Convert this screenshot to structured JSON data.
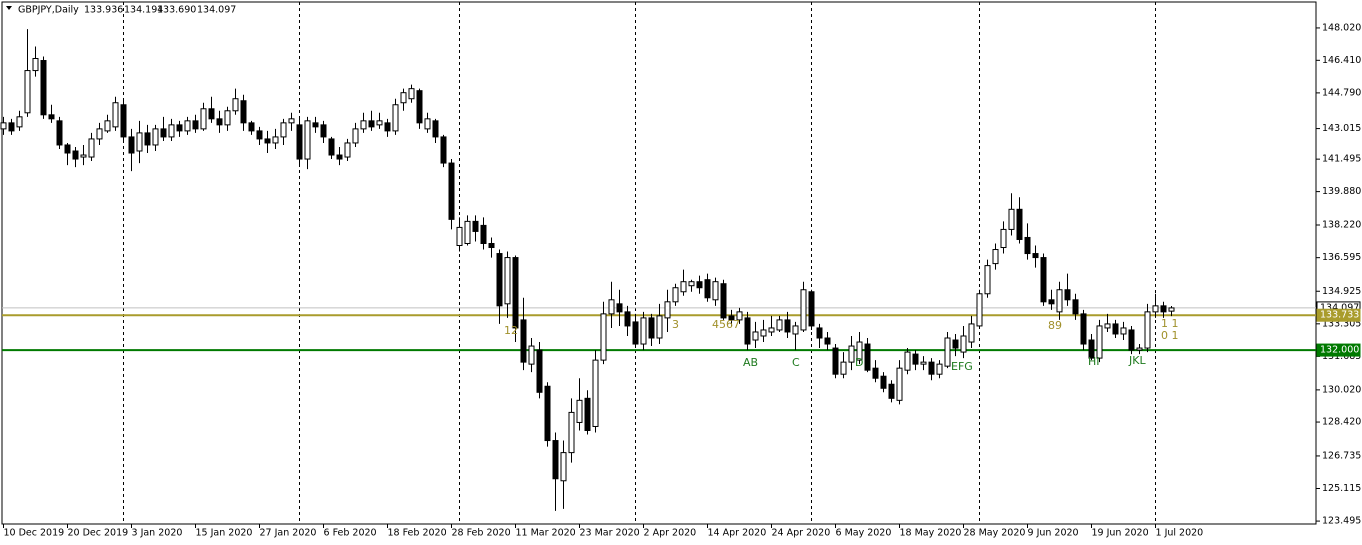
{
  "chart_data": {
    "type": "candlestick",
    "symbol": "GBPJPY,Daily",
    "quote_labels": [
      "133.936",
      "134.194",
      "133.690",
      "134.097"
    ],
    "categories": [
      "10 Dec 2019",
      null,
      null,
      null,
      null,
      null,
      null,
      null,
      "20 Dec 2019",
      null,
      null,
      null,
      null,
      null,
      null,
      null,
      "3 Jan 2020",
      null,
      null,
      null,
      null,
      null,
      null,
      null,
      "15 Jan 2020",
      null,
      null,
      null,
      null,
      null,
      null,
      null,
      "27 Jan 2020",
      null,
      null,
      null,
      null,
      null,
      null,
      null,
      "6 Feb 2020",
      null,
      null,
      null,
      null,
      null,
      null,
      null,
      "18 Feb 2020",
      null,
      null,
      null,
      null,
      null,
      null,
      null,
      "28 Feb 2020",
      null,
      null,
      null,
      null,
      null,
      null,
      null,
      "11 Mar 2020",
      null,
      null,
      null,
      null,
      null,
      null,
      null,
      "23 Mar 2020",
      null,
      null,
      null,
      null,
      null,
      null,
      null,
      "2 Apr 2020",
      null,
      null,
      null,
      null,
      null,
      null,
      null,
      "14 Apr 2020",
      null,
      null,
      null,
      null,
      null,
      null,
      null,
      "24 Apr 2020",
      null,
      null,
      null,
      null,
      null,
      null,
      null,
      "6 May 2020",
      null,
      null,
      null,
      null,
      null,
      null,
      null,
      "18 May 2020",
      null,
      null,
      null,
      null,
      null,
      null,
      null,
      "28 May 2020",
      null,
      null,
      null,
      null,
      null,
      null,
      null,
      "9 Jun 2020",
      null,
      null,
      null,
      null,
      null,
      null,
      null,
      "19 Jun 2020",
      null,
      null,
      null,
      null,
      null,
      null,
      null,
      "1 Jul 2020",
      null,
      null
    ],
    "open": [
      143.0,
      143.3,
      143.1,
      143.8,
      145.9,
      146.4,
      143.7,
      143.4,
      142.2,
      141.9,
      141.6,
      141.6,
      142.5,
      142.9,
      143.1,
      144.2,
      142.6,
      141.9,
      142.8,
      142.2,
      143.0,
      142.6,
      143.2,
      142.9,
      143.4,
      143.0,
      144.0,
      143.5,
      143.2,
      143.9,
      144.4,
      143.3,
      142.9,
      142.5,
      142.3,
      142.6,
      143.3,
      143.2,
      141.5,
      143.3,
      143.2,
      142.5,
      141.7,
      141.6,
      142.3,
      143.0,
      143.4,
      143.2,
      143.3,
      142.9,
      144.3,
      144.5,
      144.9,
      143.0,
      143.4,
      142.6,
      141.3,
      137.2,
      137.3,
      138.4,
      138.2,
      137.3,
      136.8,
      134.3,
      136.6,
      133.5,
      131.3,
      132.0,
      130.2,
      127.5,
      125.5,
      126.9,
      128.4,
      129.6,
      128.2,
      131.5,
      133.8,
      134.3,
      133.9,
      133.4,
      132.3,
      133.6,
      132.6,
      133.6,
      134.4,
      134.9,
      135.2,
      135.4,
      135.5,
      134.5,
      135.3,
      133.7,
      133.5,
      133.6,
      132.5,
      132.7,
      132.9,
      133.0,
      133.5,
      132.8,
      133.0,
      134.9,
      133.1,
      132.6,
      132.1,
      130.8,
      131.4,
      131.5,
      132.3,
      131.1,
      130.7,
      130.3,
      129.5,
      131.0,
      131.8,
      131.3,
      131.4,
      130.8,
      131.2,
      132.5,
      131.9,
      132.4,
      133.2,
      134.8,
      136.3,
      137.1,
      138.0,
      139.0,
      137.6,
      136.8,
      136.6,
      134.5,
      133.9,
      135.0,
      134.5,
      133.8,
      132.5,
      131.6,
      133.1,
      133.3,
      132.8,
      133.0,
      132.0,
      132.1,
      133.9,
      134.2,
      133.936
    ],
    "high": [
      143.6,
      143.5,
      143.9,
      147.96,
      147.1,
      146.6,
      144.2,
      143.6,
      142.3,
      142.1,
      142.2,
      142.8,
      143.3,
      143.7,
      144.6,
      144.5,
      143.0,
      143.4,
      143.2,
      143.2,
      143.6,
      143.5,
      143.4,
      143.6,
      143.7,
      144.3,
      144.6,
      143.9,
      144.1,
      145.0,
      144.7,
      143.4,
      143.1,
      142.9,
      143.0,
      143.5,
      143.8,
      143.5,
      143.6,
      143.6,
      143.4,
      142.6,
      142.1,
      142.5,
      143.3,
      143.8,
      143.9,
      143.8,
      143.5,
      144.5,
      145.0,
      145.2,
      145.0,
      143.8,
      143.5,
      142.7,
      141.5,
      138.6,
      138.7,
      138.7,
      138.6,
      137.6,
      137.0,
      136.9,
      136.7,
      134.6,
      132.6,
      132.4,
      130.4,
      127.9,
      127.5,
      129.6,
      130.6,
      130.0,
      132.0,
      134.4,
      135.4,
      135.0,
      134.2,
      133.8,
      133.9,
      133.8,
      134.3,
      135.0,
      135.3,
      136.0,
      135.5,
      135.7,
      135.8,
      135.6,
      135.5,
      134.0,
      134.1,
      133.9,
      133.4,
      133.5,
      133.7,
      133.7,
      133.9,
      133.4,
      135.4,
      135.0,
      133.3,
      132.9,
      132.3,
      131.9,
      132.7,
      132.9,
      132.6,
      131.5,
      130.9,
      130.5,
      131.5,
      132.1,
      132.0,
      131.7,
      131.6,
      131.5,
      132.9,
      132.8,
      133.2,
      133.7,
      135.0,
      136.5,
      137.3,
      138.4,
      139.8,
      139.6,
      138.3,
      137.2,
      136.8,
      135.0,
      135.4,
      135.8,
      134.8,
      134.0,
      132.8,
      133.5,
      133.8,
      133.5,
      133.4,
      133.2,
      132.3,
      134.3,
      134.8,
      134.4,
      134.194
    ],
    "low": [
      142.7,
      142.7,
      142.9,
      143.6,
      145.6,
      143.5,
      143.3,
      142.0,
      141.2,
      141.1,
      141.2,
      141.4,
      142.2,
      142.8,
      142.9,
      142.3,
      140.9,
      141.3,
      141.8,
      141.9,
      142.4,
      142.4,
      142.6,
      142.7,
      142.8,
      142.9,
      143.3,
      142.8,
      142.9,
      143.7,
      142.9,
      142.7,
      142.2,
      141.8,
      142.0,
      142.2,
      142.9,
      141.2,
      141.0,
      142.8,
      142.3,
      141.5,
      141.2,
      141.4,
      142.1,
      142.8,
      142.9,
      143.0,
      142.6,
      142.7,
      143.9,
      144.3,
      143.0,
      142.8,
      142.3,
      141.1,
      138.0,
      136.9,
      137.2,
      137.4,
      137.0,
      136.6,
      133.3,
      133.6,
      132.4,
      131.0,
      130.9,
      129.6,
      127.2,
      124.0,
      124.1,
      126.4,
      128.0,
      127.8,
      127.9,
      131.3,
      133.1,
      133.2,
      132.7,
      132.1,
      132.0,
      132.2,
      132.3,
      132.9,
      134.2,
      134.7,
      134.9,
      134.8,
      134.4,
      134.2,
      133.5,
      133.2,
      133.3,
      132.0,
      132.1,
      132.4,
      132.7,
      132.9,
      132.6,
      132.0,
      132.9,
      133.0,
      132.1,
      132.0,
      130.6,
      130.6,
      131.0,
      131.3,
      130.9,
      130.4,
      129.9,
      129.4,
      129.3,
      130.8,
      131.0,
      131.0,
      130.5,
      130.6,
      131.1,
      131.7,
      131.6,
      132.1,
      133.1,
      134.6,
      136.0,
      136.8,
      137.7,
      137.3,
      136.5,
      136.1,
      134.2,
      134.0,
      133.5,
      134.2,
      133.5,
      132.0,
      131.5,
      131.4,
      132.9,
      132.6,
      132.5,
      131.8,
      131.8,
      131.9,
      133.6,
      133.6,
      133.69
    ],
    "close": [
      143.3,
      142.9,
      143.6,
      145.9,
      146.5,
      143.7,
      143.5,
      142.2,
      141.8,
      141.5,
      141.7,
      142.5,
      143.0,
      143.4,
      144.3,
      142.6,
      141.8,
      142.8,
      142.2,
      143.0,
      142.6,
      143.2,
      142.9,
      143.4,
      143.0,
      144.0,
      143.5,
      143.2,
      143.9,
      144.5,
      143.3,
      142.9,
      142.5,
      142.3,
      142.6,
      143.3,
      143.5,
      141.5,
      143.4,
      143.1,
      142.6,
      141.7,
      141.5,
      142.3,
      143.0,
      143.4,
      143.1,
      143.4,
      142.9,
      144.2,
      144.8,
      145.0,
      143.3,
      143.5,
      142.6,
      141.3,
      138.5,
      138.1,
      138.4,
      137.9,
      137.3,
      137.1,
      134.2,
      136.6,
      133.1,
      131.4,
      132.2,
      129.9,
      127.5,
      125.6,
      126.9,
      128.9,
      129.5,
      128.0,
      131.5,
      133.8,
      134.5,
      133.9,
      133.2,
      132.3,
      133.6,
      132.6,
      133.7,
      134.4,
      135.1,
      135.4,
      135.4,
      135.1,
      134.6,
      135.4,
      133.6,
      133.5,
      133.9,
      132.3,
      132.9,
      133.0,
      133.1,
      133.5,
      132.9,
      133.2,
      135.0,
      133.2,
      132.6,
      132.3,
      130.8,
      131.4,
      132.2,
      132.4,
      131.0,
      130.6,
      130.1,
      129.6,
      131.1,
      131.9,
      131.3,
      131.4,
      130.8,
      131.3,
      132.6,
      132.1,
      132.7,
      133.3,
      134.8,
      136.2,
      137.0,
      138.0,
      139.0,
      137.5,
      136.8,
      136.6,
      134.4,
      134.3,
      135.0,
      134.5,
      133.8,
      132.3,
      131.6,
      133.2,
      133.3,
      132.8,
      133.1,
      132.0,
      132.1,
      133.9,
      134.2,
      133.9,
      134.097
    ],
    "bull_color": "#ffffff",
    "bear_color": "#000000",
    "ylim": [
      123.35,
      149.31
    ],
    "yticks": [
      {
        "value": 148.02,
        "label": "148.020"
      },
      {
        "value": 146.41,
        "label": "146.410"
      },
      {
        "value": 144.79,
        "label": "144.790"
      },
      143.015,
      141.495,
      {
        "value": 139.88,
        "label": "139.880"
      },
      {
        "value": 138.22,
        "label": "138.220"
      },
      136.595,
      134.925,
      133.305,
      131.685,
      {
        "value": 130.02,
        "label": "130.020"
      },
      {
        "value": 128.42,
        "label": "128.420"
      },
      126.735,
      125.115,
      123.495
    ],
    "grid": false,
    "levels": [
      {
        "value": 133.733,
        "color": "#a99c2c"
      },
      {
        "value": 132,
        "label": "132.000",
        "color": "#007a00"
      }
    ],
    "annotations": [
      {
        "text": "12",
        "color": "#a0902a"
      },
      {
        "text": "3",
        "color": "#a0902a"
      },
      {
        "text": "4567",
        "color": "#a0902a"
      },
      {
        "text": "89",
        "color": "#a0902a"
      },
      {
        "text": "1 1",
        "color": "#a0902a"
      },
      {
        "text": "0 1",
        "color": "#a0902a"
      },
      {
        "text": "AB",
        "color": "#1e7a1e"
      },
      {
        "text": "C",
        "color": "#1e7a1e"
      },
      {
        "text": "D",
        "color": "#1e7a1e"
      },
      {
        "text": "EFG",
        "color": "#1e7a1e"
      },
      {
        "text": "HI",
        "color": "#1e7a1e"
      },
      {
        "text": "JKL",
        "color": "#1e7a1e"
      }
    ]
  }
}
